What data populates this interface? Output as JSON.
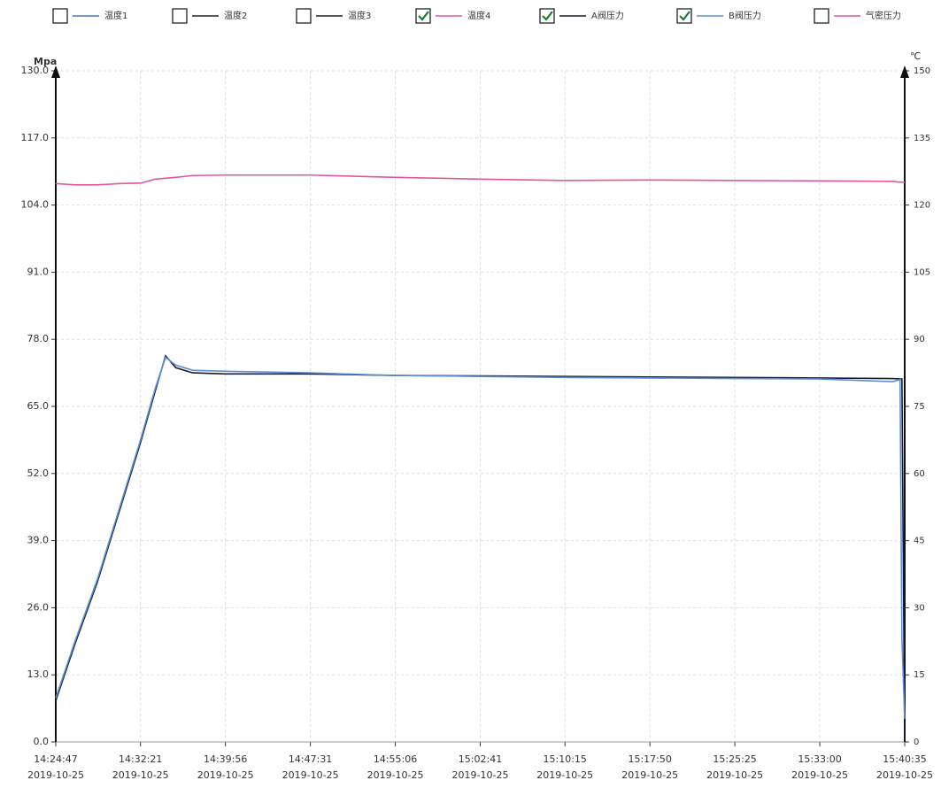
{
  "chart_data": {
    "type": "line",
    "ylabel": "Mpa",
    "y2label": "℃",
    "x": [
      "2019-10-25T14:24:47",
      "2019-10-25T14:26:30",
      "2019-10-25T14:28:30",
      "2019-10-25T14:30:30",
      "2019-10-25T14:32:21",
      "2019-10-25T14:33:40",
      "2019-10-25T14:34:35",
      "2019-10-25T14:35:30",
      "2019-10-25T14:37:00",
      "2019-10-25T14:39:56",
      "2019-10-25T14:47:31",
      "2019-10-25T14:55:06",
      "2019-10-25T15:02:41",
      "2019-10-25T15:10:15",
      "2019-10-25T15:17:50",
      "2019-10-25T15:25:25",
      "2019-10-25T15:33:00",
      "2019-10-25T15:39:30",
      "2019-10-25T15:40:10",
      "2019-10-25T15:40:20",
      "2019-10-25T15:40:35"
    ],
    "series": [
      {
        "name": "温度1",
        "color": "#4a78c8",
        "checked": false
      },
      {
        "name": "温度2",
        "color": "#222222",
        "checked": false
      },
      {
        "name": "温度3",
        "color": "#222222",
        "checked": false
      },
      {
        "name": "温度4",
        "color": "#e0589a",
        "checked": true,
        "axis": "y2",
        "values": [
          124.8,
          124.5,
          124.5,
          124.8,
          124.9,
          125.8,
          126.0,
          126.2,
          126.6,
          126.7,
          126.7,
          126.2,
          125.8,
          125.5,
          125.6,
          125.5,
          125.4,
          125.3,
          125.1,
          125.1,
          125.1
        ]
      },
      {
        "name": "A阀压力",
        "color": "#1a1a2e",
        "checked": true,
        "values": [
          8,
          19,
          31,
          45,
          58,
          68,
          74.8,
          72.5,
          71.5,
          71.3,
          71.3,
          71,
          70.9,
          70.8,
          70.7,
          70.6,
          70.5,
          70.4,
          70.3,
          70.3,
          0
        ]
      },
      {
        "name": "B阀压力",
        "color": "#5b8fd8",
        "checked": true,
        "values": [
          8.5,
          19.5,
          31.5,
          45.5,
          58.5,
          68.5,
          74.5,
          73,
          72,
          71.8,
          71.5,
          71,
          70.8,
          70.6,
          70.5,
          70.4,
          70.3,
          69.8,
          70.2,
          20,
          4.5
        ]
      },
      {
        "name": "气密压力",
        "color": "#e0589a",
        "checked": false
      }
    ],
    "xlim": [
      "2019-10-25T14:24:47",
      "2019-10-25T15:40:35"
    ],
    "xticks": [
      {
        "value": "2019-10-25T14:24:47",
        "label": [
          "14:24:47",
          "2019-10-25"
        ]
      },
      {
        "value": "2019-10-25T14:32:21",
        "label": [
          "14:32:21",
          "2019-10-25"
        ]
      },
      {
        "value": "2019-10-25T14:39:56",
        "label": [
          "14:39:56",
          "2019-10-25"
        ]
      },
      {
        "value": "2019-10-25T14:47:31",
        "label": [
          "14:47:31",
          "2019-10-25"
        ]
      },
      {
        "value": "2019-10-25T14:55:06",
        "label": [
          "14:55:06",
          "2019-10-25"
        ]
      },
      {
        "value": "2019-10-25T15:02:41",
        "label": [
          "15:02:41",
          "2019-10-25"
        ]
      },
      {
        "value": "2019-10-25T15:10:15",
        "label": [
          "15:10:15",
          "2019-10-25"
        ]
      },
      {
        "value": "2019-10-25T15:17:50",
        "label": [
          "15:17:50",
          "2019-10-25"
        ]
      },
      {
        "value": "2019-10-25T15:25:25",
        "label": [
          "15:25:25",
          "2019-10-25"
        ]
      },
      {
        "value": "2019-10-25T15:33:00",
        "label": [
          "15:33:00",
          "2019-10-25"
        ]
      },
      {
        "value": "2019-10-25T15:40:35",
        "label": [
          "15:40:35",
          "2019-10-25"
        ]
      }
    ],
    "ylim": [
      0,
      130
    ],
    "yticks": [
      {
        "value": 0,
        "label": "0.0"
      },
      {
        "value": 13,
        "label": "13.0"
      },
      {
        "value": 26,
        "label": "26.0"
      },
      {
        "value": 39,
        "label": "39.0"
      },
      {
        "value": 52,
        "label": "52.0"
      },
      {
        "value": 65,
        "label": "65.0"
      },
      {
        "value": 78,
        "label": "78.0"
      },
      {
        "value": 91,
        "label": "91.0"
      },
      {
        "value": 104,
        "label": "104.0"
      },
      {
        "value": 117,
        "label": "117.0"
      },
      {
        "value": 130,
        "label": "130.0"
      }
    ],
    "y2lim": [
      0,
      150
    ],
    "y2ticks": [
      0,
      15,
      30,
      45,
      60,
      75,
      90,
      105,
      120,
      135,
      150
    ],
    "grid": true
  }
}
